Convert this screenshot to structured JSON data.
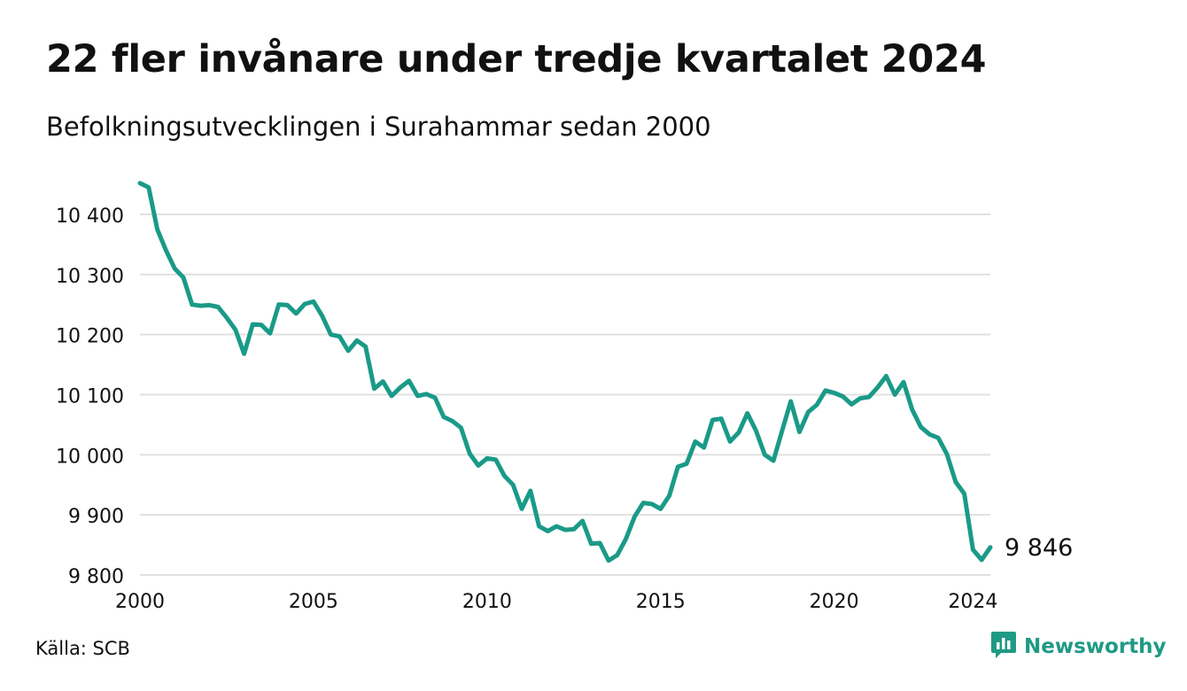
{
  "header": {
    "title": "22 fler invånare under tredje kvartalet 2024",
    "subtitle": "Befolkningsutvecklingen i Surahammar sedan 2000"
  },
  "footer": {
    "source": "Källa: SCB",
    "brand": "Newsworthy"
  },
  "colors": {
    "line": "#1a9a88",
    "grid": "#e0e0e0",
    "brand": "#1f9a85"
  },
  "icons": {
    "brand_logo": "newsworthy-logo-icon"
  },
  "chart_data": {
    "type": "line",
    "title": "22 fler invånare under tredje kvartalet 2024",
    "subtitle": "Befolkningsutvecklingen i Surahammar sedan 2000",
    "xlabel": "",
    "ylabel": "",
    "x_ticks": [
      2000,
      2005,
      2010,
      2015,
      2020,
      2024
    ],
    "y_ticks": [
      9800,
      9900,
      10000,
      10100,
      10200,
      10300,
      10400
    ],
    "y_tick_labels": [
      "9 800",
      "9 900",
      "10 000",
      "10 100",
      "10 200",
      "10 300",
      "10 400"
    ],
    "xlim": [
      2000,
      2025
    ],
    "ylim": [
      9800,
      10460
    ],
    "grid": true,
    "legend": "none",
    "end_label": "9 846",
    "series": [
      {
        "values": [
          [
            2000.0,
            10452
          ],
          [
            2000.25,
            10445
          ],
          [
            2000.5,
            10375
          ],
          [
            2000.75,
            10340
          ],
          [
            2001.0,
            10310
          ],
          [
            2001.25,
            10295
          ],
          [
            2001.5,
            10250
          ],
          [
            2001.75,
            10248
          ],
          [
            2002.0,
            10249
          ],
          [
            2002.25,
            10246
          ],
          [
            2002.5,
            10228
          ],
          [
            2002.75,
            10208
          ],
          [
            2003.0,
            10168
          ],
          [
            2003.25,
            10217
          ],
          [
            2003.5,
            10216
          ],
          [
            2003.75,
            10202
          ],
          [
            2004.0,
            10250
          ],
          [
            2004.25,
            10249
          ],
          [
            2004.5,
            10235
          ],
          [
            2004.75,
            10251
          ],
          [
            2005.0,
            10255
          ],
          [
            2005.25,
            10231
          ],
          [
            2005.5,
            10200
          ],
          [
            2005.75,
            10197
          ],
          [
            2006.0,
            10173
          ],
          [
            2006.25,
            10190
          ],
          [
            2006.5,
            10180
          ],
          [
            2006.75,
            10110
          ],
          [
            2007.0,
            10122
          ],
          [
            2007.25,
            10098
          ],
          [
            2007.5,
            10112
          ],
          [
            2007.75,
            10123
          ],
          [
            2008.0,
            10098
          ],
          [
            2008.25,
            10101
          ],
          [
            2008.5,
            10095
          ],
          [
            2008.75,
            10063
          ],
          [
            2009.0,
            10056
          ],
          [
            2009.25,
            10045
          ],
          [
            2009.5,
            10002
          ],
          [
            2009.75,
            9982
          ],
          [
            2010.0,
            9994
          ],
          [
            2010.25,
            9992
          ],
          [
            2010.5,
            9965
          ],
          [
            2010.75,
            9950
          ],
          [
            2011.0,
            9910
          ],
          [
            2011.25,
            9940
          ],
          [
            2011.5,
            9881
          ],
          [
            2011.75,
            9873
          ],
          [
            2012.0,
            9881
          ],
          [
            2012.25,
            9875
          ],
          [
            2012.5,
            9876
          ],
          [
            2012.75,
            9890
          ],
          [
            2013.0,
            9852
          ],
          [
            2013.25,
            9853
          ],
          [
            2013.5,
            9824
          ],
          [
            2013.75,
            9833
          ],
          [
            2014.0,
            9860
          ],
          [
            2014.25,
            9897
          ],
          [
            2014.5,
            9920
          ],
          [
            2014.75,
            9918
          ],
          [
            2015.0,
            9910
          ],
          [
            2015.25,
            9932
          ],
          [
            2015.5,
            9980
          ],
          [
            2015.75,
            9985
          ],
          [
            2016.0,
            10022
          ],
          [
            2016.25,
            10012
          ],
          [
            2016.5,
            10058
          ],
          [
            2016.75,
            10060
          ],
          [
            2017.0,
            10022
          ],
          [
            2017.25,
            10037
          ],
          [
            2017.5,
            10069
          ],
          [
            2017.75,
            10040
          ],
          [
            2018.0,
            10000
          ],
          [
            2018.25,
            9990
          ],
          [
            2018.5,
            10040
          ],
          [
            2018.75,
            10089
          ],
          [
            2019.0,
            10038
          ],
          [
            2019.25,
            10071
          ],
          [
            2019.5,
            10083
          ],
          [
            2019.75,
            10107
          ],
          [
            2020.0,
            10103
          ],
          [
            2020.25,
            10097
          ],
          [
            2020.5,
            10084
          ],
          [
            2020.75,
            10094
          ],
          [
            2021.0,
            10096
          ],
          [
            2021.25,
            10112
          ],
          [
            2021.5,
            10131
          ],
          [
            2021.75,
            10100
          ],
          [
            2022.0,
            10121
          ],
          [
            2022.25,
            10075
          ],
          [
            2022.5,
            10046
          ],
          [
            2022.75,
            10034
          ],
          [
            2023.0,
            10028
          ],
          [
            2023.25,
            10001
          ],
          [
            2023.5,
            9955
          ],
          [
            2023.75,
            9935
          ],
          [
            2024.0,
            9842
          ],
          [
            2024.25,
            9825
          ],
          [
            2024.5,
            9846
          ]
        ]
      }
    ]
  }
}
